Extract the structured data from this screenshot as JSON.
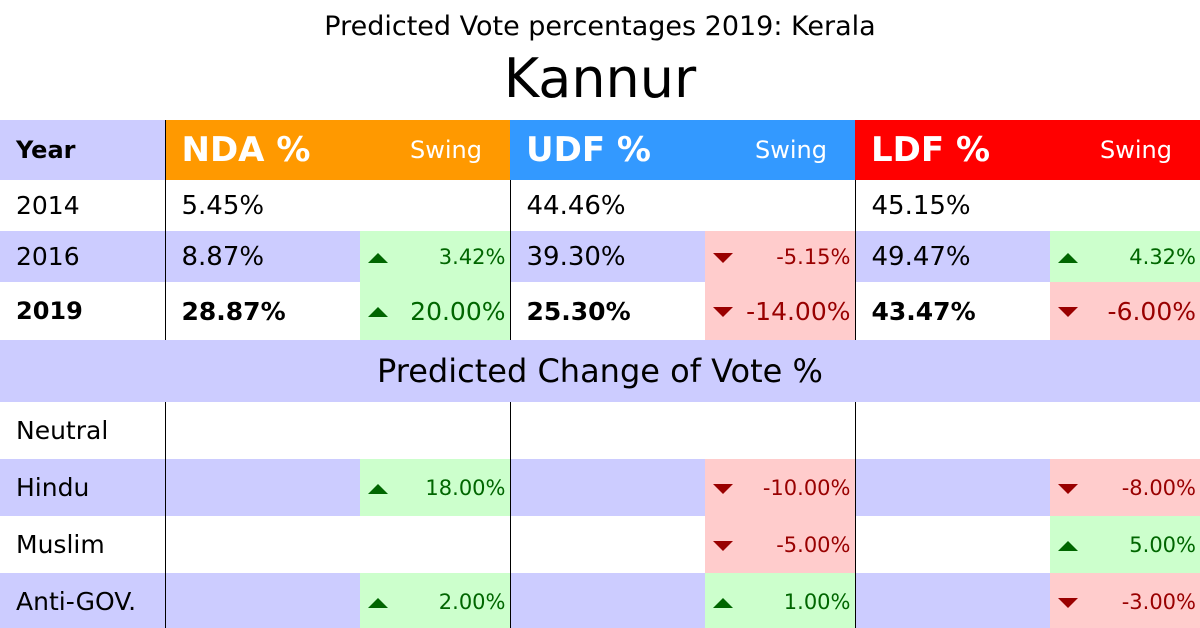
{
  "header": {
    "subtitle": "Predicted Vote percentages 2019: Kerala",
    "title": "Kannur"
  },
  "columns": {
    "year": "Year",
    "nda": "NDA %",
    "udf": "UDF %",
    "ldf": "LDF %",
    "swing": "Swing"
  },
  "colors": {
    "nda": "#ff9900",
    "udf": "#3399ff",
    "ldf": "#ff0000",
    "band": "#ccccff",
    "up_bg": "#ccffcc",
    "down_bg": "#ffcccc"
  },
  "years": [
    {
      "year": "2014",
      "nda": "5.45%",
      "nda_swing": "",
      "udf": "44.46%",
      "udf_swing": "",
      "ldf": "45.15%",
      "ldf_swing": ""
    },
    {
      "year": "2016",
      "nda": "8.87%",
      "nda_swing": "3.42%",
      "udf": "39.30%",
      "udf_swing": "-5.15%",
      "ldf": "49.47%",
      "ldf_swing": "4.32%"
    },
    {
      "year": "2019",
      "nda": "28.87%",
      "nda_swing": "20.00%",
      "udf": "25.30%",
      "udf_swing": "-14.00%",
      "ldf": "43.47%",
      "ldf_swing": "-6.00%"
    }
  ],
  "section_title": "Predicted Change of Vote %",
  "changes": [
    {
      "label": "Neutral",
      "nda": "",
      "udf": "",
      "ldf": ""
    },
    {
      "label": "Hindu",
      "nda": "18.00%",
      "udf": "-10.00%",
      "ldf": "-8.00%"
    },
    {
      "label": "Muslim",
      "nda": "",
      "udf": "-5.00%",
      "ldf": "5.00%"
    },
    {
      "label": "Anti-GOV.",
      "nda": "2.00%",
      "udf": "1.00%",
      "ldf": "-3.00%"
    }
  ]
}
